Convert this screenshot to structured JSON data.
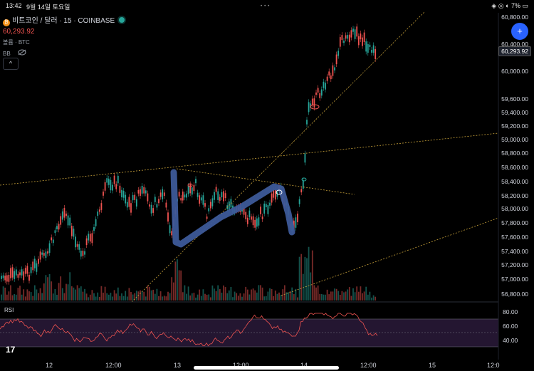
{
  "status": {
    "time": "13:42",
    "date": "9월 14일 토요일",
    "right": "◈ ◎ ◐ 7% ▭"
  },
  "legend": {
    "symbol": "비트코인 / 달러 · 15 · COINBASE",
    "price": "60,293.92",
    "volume": "볼륨 · BTC",
    "bb": "BB",
    "collapse": "^"
  },
  "axis": {
    "prices": [
      "60,800.00",
      "60,400.00",
      "60,000.00",
      "59,600.00",
      "59,400.00",
      "59,200.00",
      "59,000.00",
      "58,800.00",
      "58,600.00",
      "58,400.00",
      "58,200.00",
      "58,000.00",
      "57,800.00",
      "57,600.00",
      "57,400.00",
      "57,200.00",
      "57,000.00",
      "56,800.00"
    ],
    "current": "60,293.92",
    "rsi": [
      "80.00",
      "60.00",
      "40.00"
    ]
  },
  "xaxis": {
    "labels": [
      "12",
      "12:00",
      "13",
      "12:00",
      "14",
      "12:00",
      "15",
      "12:0"
    ]
  },
  "rsi_label": "RSI",
  "plus_button": "+",
  "colors": {
    "up": "#26a69a",
    "down": "#ef5350",
    "accent": "#2962ff",
    "drawing": "#3d5a99",
    "trend": "#c8a23a"
  }
}
